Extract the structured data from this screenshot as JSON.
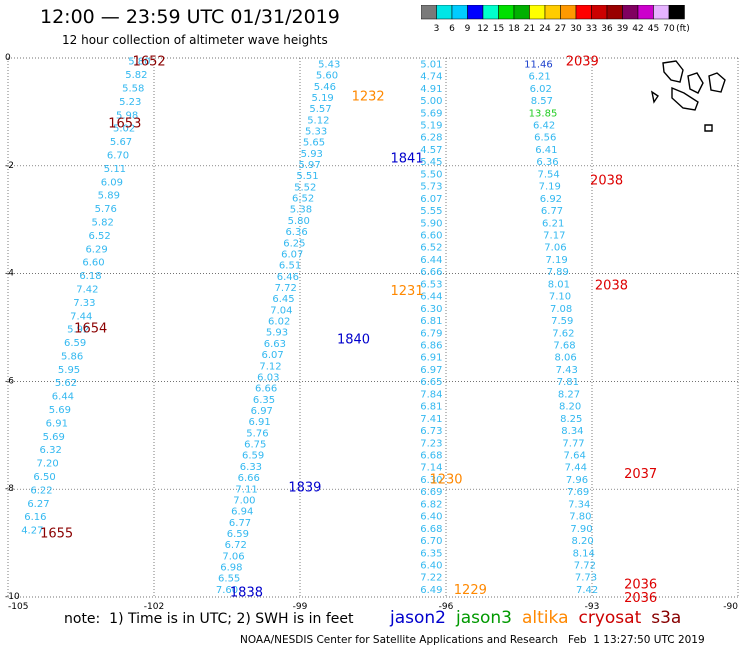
{
  "title": "12:00 — 23:59 UTC 01/31/2019",
  "subtitle": "12 hour collection of altimeter wave heights",
  "footer": {
    "note": "note:  1) Time is in UTC; 2) SWH is in feet",
    "credit": "NOAA/NESDIS Center for Satellite Applications and Research   Feb  1 13:27:50 UTC 2019"
  },
  "legend": [
    {
      "name": "jason2",
      "color": "#0000cc"
    },
    {
      "name": "jason3",
      "color": "#009900"
    },
    {
      "name": "altika",
      "color": "#ff8800"
    },
    {
      "name": "cryosat",
      "color": "#cc0000"
    },
    {
      "name": "s3a",
      "color": "#880000"
    }
  ],
  "colorbar": {
    "colors": [
      "#7a7a7a",
      "#00e6e6",
      "#00ccff",
      "#0000ff",
      "#00ffcc",
      "#00e000",
      "#00b000",
      "#ffff00",
      "#ffcc00",
      "#ff9900",
      "#ff0000",
      "#cc0000",
      "#990000",
      "#800060",
      "#cc00cc",
      "#e6b3ff",
      "#000000"
    ],
    "labels": [
      "3",
      "6",
      "9",
      "12",
      "15",
      "18",
      "21",
      "24",
      "27",
      "30",
      "33",
      "36",
      "39",
      "42",
      "45",
      "70"
    ],
    "unit": "(ft)"
  },
  "chart_data": {
    "type": "scatter",
    "xlim": [
      -105,
      -90
    ],
    "ylim": [
      -10,
      0
    ],
    "x_ticks": [
      "-105",
      "-102",
      "-99",
      "-96",
      "-93",
      "-90"
    ],
    "y_ticks": [
      "0",
      "-2",
      "-4",
      "-6",
      "-8",
      "-10"
    ],
    "grid": true,
    "tracks": [
      {
        "satellite": "s3a",
        "color": "#33b8f0",
        "x0": -102.3,
        "y0": -0.05,
        "x1": -104.5,
        "y1": -8.75,
        "values": [
          "5.80",
          "5.82",
          "5.58",
          "5.23",
          "5.98",
          "5.02",
          "5.67",
          "6.70",
          "5.11",
          "6.09",
          "5.89",
          "5.76",
          "5.82",
          "6.52",
          "6.29",
          "6.60",
          "6.18",
          "7.42",
          "7.33",
          "7.44",
          "5.92",
          "6.59",
          "5.86",
          "5.95",
          "5.62",
          "6.44",
          "5.69",
          "6.91",
          "5.69",
          "6.32",
          "7.20",
          "6.50",
          "6.22",
          "6.27",
          "6.16",
          "4.27"
        ],
        "times": [
          {
            "label": "1652",
            "x": -102.1,
            "y": -0.05
          },
          {
            "label": "1653",
            "x": -102.6,
            "y": -1.2
          },
          {
            "label": "1654",
            "x": -103.3,
            "y": -5.0
          },
          {
            "label": "1655",
            "x": -104.0,
            "y": -8.8
          }
        ]
      },
      {
        "satellite": "jason2",
        "color": "#33b8f0",
        "x0": -98.4,
        "y0": -0.1,
        "x1": -100.5,
        "y1": -9.85,
        "values": [
          "5.43",
          "5.60",
          "5.46",
          "5.19",
          "5.57",
          "5.12",
          "5.33",
          "5.65",
          "5.93",
          "5.97",
          "5.51",
          "5.52",
          "6.52",
          "5.38",
          "5.80",
          "6.36",
          "6.25",
          "6.07",
          "6.51",
          "6.46",
          "7.72",
          "6.45",
          "7.04",
          "6.02",
          "5.93",
          "6.63",
          "6.07",
          "7.12",
          "6.03",
          "6.66",
          "6.35",
          "6.97",
          "6.91",
          "5.76",
          "6.75",
          "6.59",
          "6.33",
          "6.66",
          "7.11",
          "7.00",
          "6.94",
          "6.77",
          "6.59",
          "6.72",
          "7.06",
          "6.98",
          "6.55",
          "7.60"
        ],
        "times": [
          {
            "label": "1841",
            "x": -96.8,
            "y": -1.85
          },
          {
            "label": "1840",
            "x": -97.9,
            "y": -5.2
          },
          {
            "label": "1839",
            "x": -98.9,
            "y": -7.95
          },
          {
            "label": "1838",
            "x": -100.1,
            "y": -9.9
          }
        ]
      },
      {
        "satellite": "altika",
        "color": "#33b8f0",
        "x0": -96.3,
        "y0": -0.1,
        "x1": -96.3,
        "y1": -9.85,
        "values": [
          "5.01",
          "4.74",
          "4.91",
          "5.00",
          "5.69",
          "5.19",
          "6.28",
          "4.57",
          "5.45",
          "5.50",
          "5.73",
          "6.07",
          "5.55",
          "5.90",
          "6.60",
          "6.52",
          "6.44",
          "6.66",
          "6.53",
          "6.44",
          "6.30",
          "6.81",
          "6.79",
          "6.86",
          "6.91",
          "6.97",
          "6.65",
          "7.84",
          "6.81",
          "7.41",
          "6.73",
          "7.23",
          "6.68",
          "7.14",
          "6.30",
          "6.69",
          "6.82",
          "6.40",
          "6.68",
          "6.70",
          "6.35",
          "6.40",
          "7.22",
          "6.49"
        ],
        "times": [
          {
            "label": "1232",
            "x": -97.6,
            "y": -0.7
          },
          {
            "label": "1231",
            "x": -96.8,
            "y": -4.3
          },
          {
            "label": "1230",
            "x": -96.0,
            "y": -7.8
          },
          {
            "label": "1229",
            "x": -95.5,
            "y": -9.85
          }
        ]
      },
      {
        "satellite": "cryosat",
        "color": "#33b8f0",
        "x0": -94.1,
        "y0": -0.1,
        "x1": -93.1,
        "y1": -9.85,
        "values": [
          "11.46",
          "6.21",
          "6.02",
          "8.57",
          "13.85",
          "6.42",
          "6.56",
          "6.41",
          "6.36",
          "7.54",
          "7.19",
          "6.92",
          "6.77",
          "6.21",
          "7.17",
          "7.06",
          "7.19",
          "7.89",
          "8.01",
          "7.10",
          "7.08",
          "7.59",
          "7.62",
          "7.68",
          "8.06",
          "7.43",
          "7.81",
          "8.27",
          "8.20",
          "8.25",
          "8.34",
          "7.77",
          "7.64",
          "7.44",
          "7.96",
          "7.69",
          "7.34",
          "7.80",
          "7.90",
          "8.20",
          "8.14",
          "7.72",
          "7.73",
          "7.42"
        ],
        "times": [
          {
            "label": "2039",
            "x": -93.2,
            "y": -0.05
          },
          {
            "label": "2038",
            "x": -92.7,
            "y": -2.25
          },
          {
            "label": "2038",
            "x": -92.6,
            "y": -4.2
          },
          {
            "label": "2037",
            "x": -92.0,
            "y": -7.7
          },
          {
            "label": "2036",
            "x": -92.0,
            "y": -9.75
          },
          {
            "label": "2036",
            "x": -92.0,
            "y": -10.0
          }
        ]
      }
    ]
  }
}
